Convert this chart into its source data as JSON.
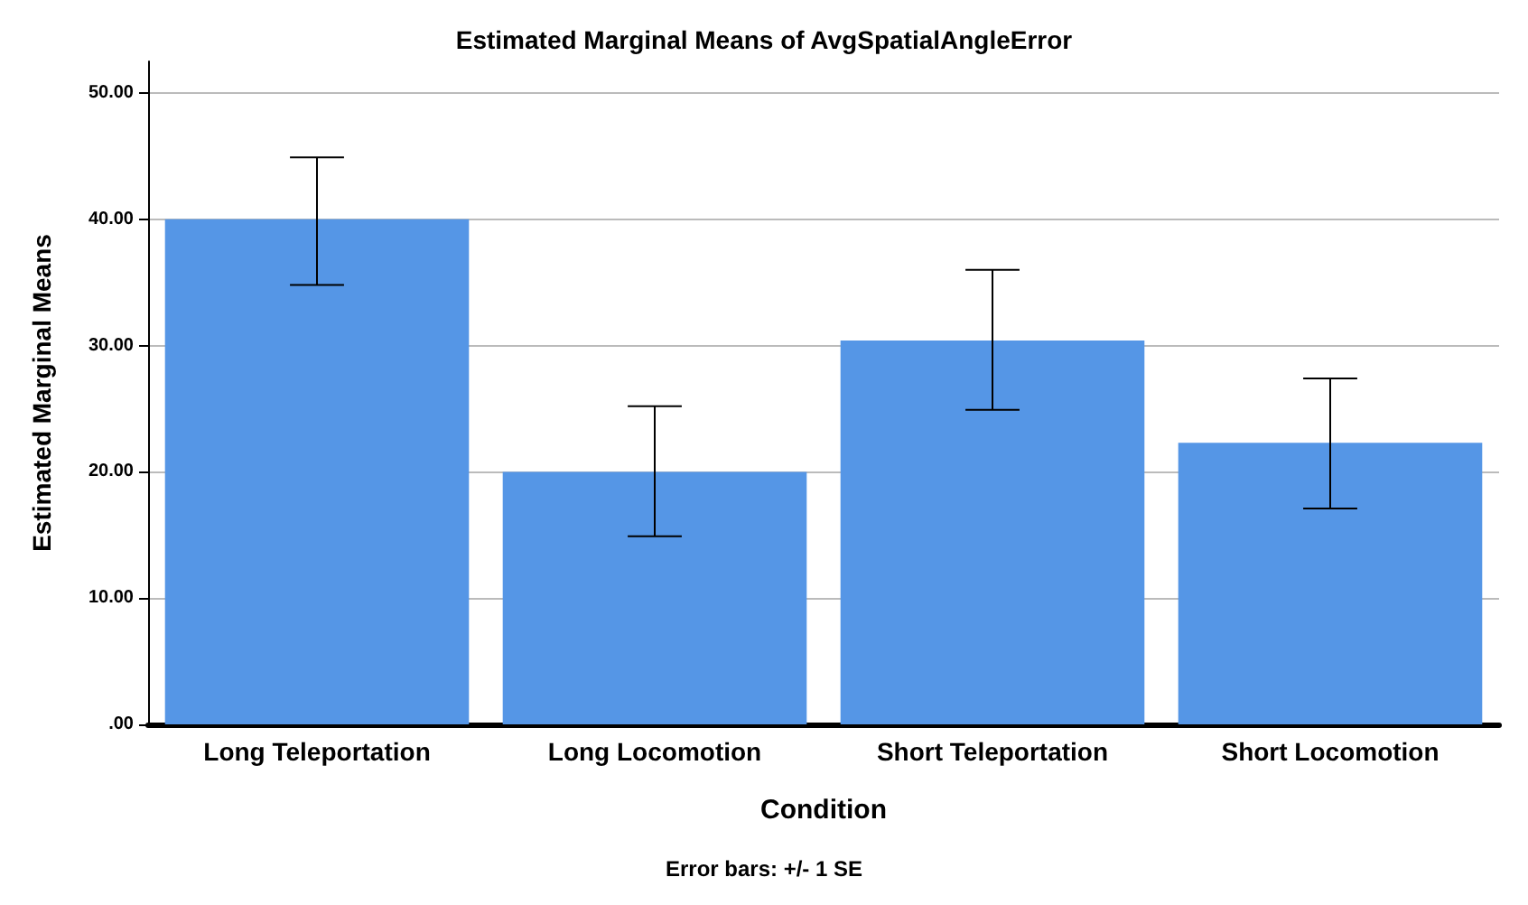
{
  "chart_data": {
    "type": "bar",
    "title": "Estimated Marginal Means of AvgSpatialAngleError",
    "xlabel": "Condition",
    "ylabel": "Estimated Marginal Means",
    "categories": [
      "Long Teleportation",
      "Long Locomotion",
      "Short Teleportation",
      "Short Locomotion"
    ],
    "values": [
      40.0,
      20.0,
      30.4,
      22.3
    ],
    "color": "#5596e6",
    "errors": [
      [
        34.8,
        44.9
      ],
      [
        14.9,
        25.2
      ],
      [
        24.9,
        36.0
      ],
      [
        17.1,
        27.4
      ]
    ],
    "ylim": [
      0,
      52.5
    ],
    "yticks": [
      {
        "value": 0,
        "label": ".00"
      },
      {
        "value": 10,
        "label": "10.00"
      },
      {
        "value": 20,
        "label": "20.00"
      },
      {
        "value": 30,
        "label": "30.00"
      },
      {
        "value": 40,
        "label": "40.00"
      },
      {
        "value": 50,
        "label": "50.00"
      }
    ],
    "grid": "y",
    "annotations": [
      "Error bars: +/- 1 SE"
    ]
  }
}
